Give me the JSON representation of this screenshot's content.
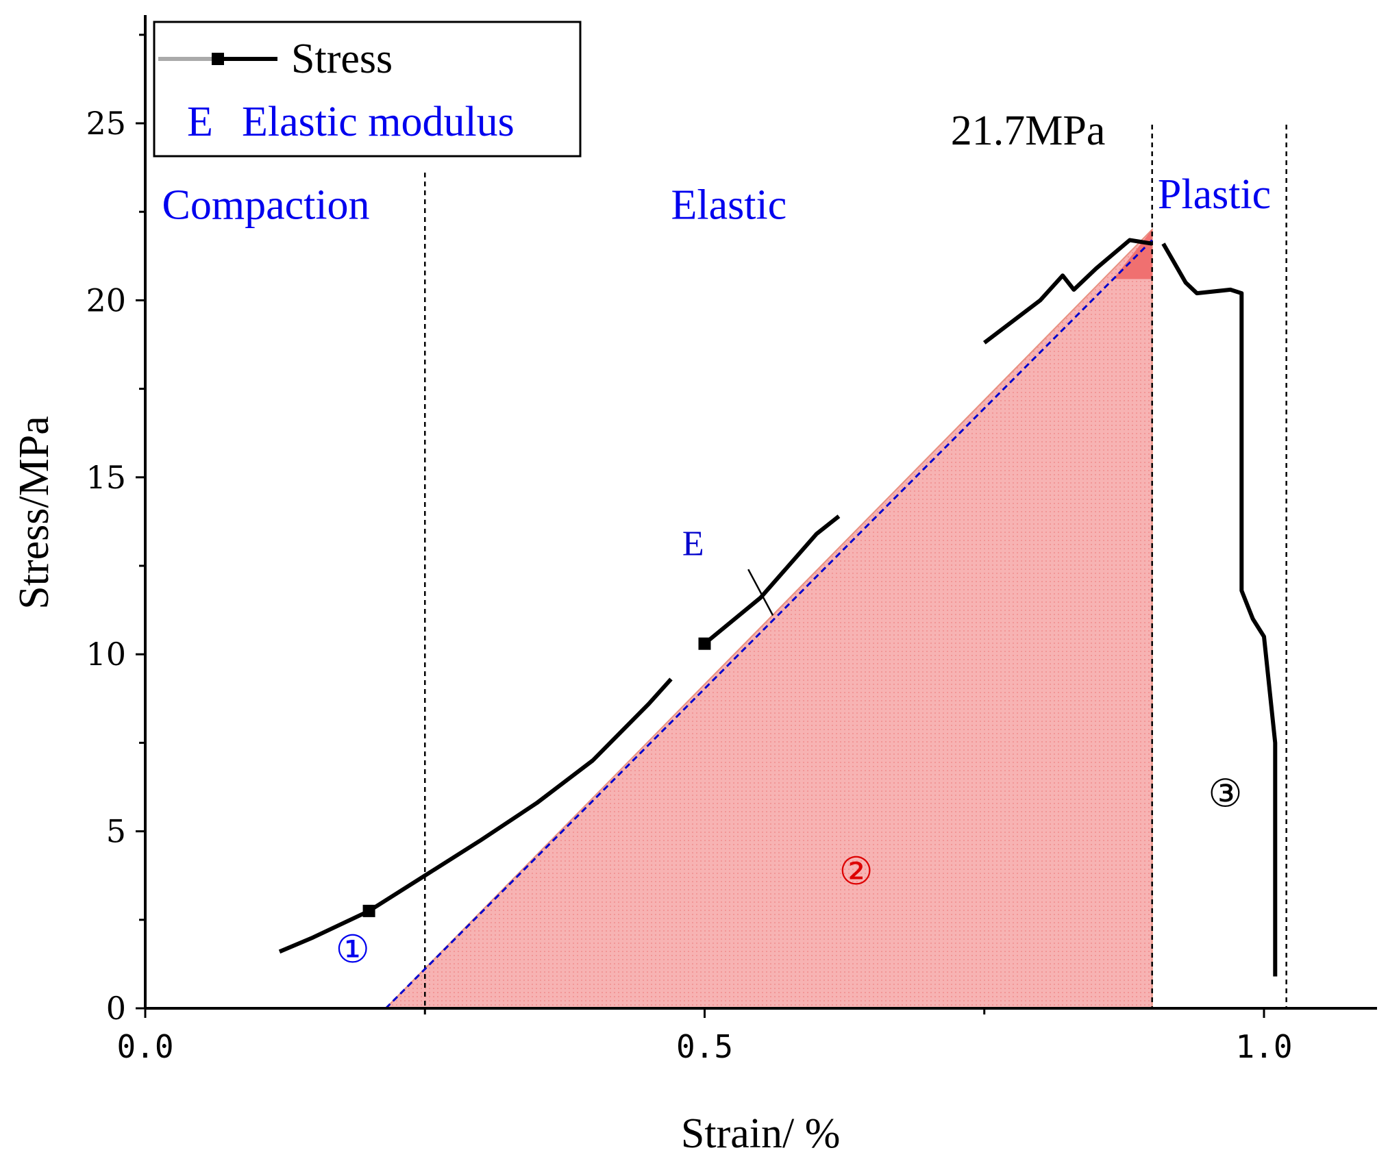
{
  "chart_data": {
    "type": "line",
    "xlabel": "Strain/ %",
    "ylabel": "Stress/MPa",
    "xlim": [
      0.0,
      1.1
    ],
    "ylim": [
      0,
      28
    ],
    "xticks": [
      {
        "value": 0.0,
        "label": "0.0"
      },
      {
        "value": 0.5,
        "label": "0.5"
      },
      {
        "value": 1.0,
        "label": "1.0"
      }
    ],
    "yticks": [
      {
        "value": 0,
        "label": "0"
      },
      {
        "value": 5,
        "label": "5"
      },
      {
        "value": 10,
        "label": "10"
      },
      {
        "value": 15,
        "label": "15"
      },
      {
        "value": 20,
        "label": "20"
      },
      {
        "value": 25,
        "label": "25"
      }
    ],
    "x_minor_ticks": [
      0.25,
      0.75
    ],
    "y_minor_ticks": [
      2.5,
      7.5,
      12.5,
      17.5,
      22.5,
      27.5
    ],
    "legend": [
      {
        "marker": "line-square",
        "label": "Stress"
      },
      {
        "marker": "text",
        "symbol": "E",
        "label": "Elastic modulus"
      }
    ],
    "series": [
      {
        "name": "Stress",
        "color": "#000000",
        "points": [
          [
            0.0,
            0.0
          ],
          [
            0.21,
            0.0
          ],
          [
            0.12,
            1.6
          ],
          [
            0.15,
            2.0
          ],
          [
            0.2,
            2.75
          ],
          [
            0.25,
            3.75
          ],
          [
            0.3,
            4.75
          ],
          [
            0.35,
            5.8
          ],
          [
            0.4,
            7.0
          ],
          [
            0.45,
            8.6
          ],
          [
            0.47,
            9.3
          ],
          [
            0.5,
            10.3
          ],
          [
            0.55,
            11.6
          ],
          [
            0.6,
            13.4
          ],
          [
            0.62,
            13.9
          ],
          [
            0.75,
            18.8
          ],
          [
            0.8,
            20.0
          ],
          [
            0.82,
            20.7
          ],
          [
            0.83,
            20.3
          ],
          [
            0.85,
            20.9
          ],
          [
            0.88,
            21.7
          ],
          [
            0.9,
            21.6
          ],
          [
            0.91,
            21.6
          ],
          [
            0.93,
            20.5
          ],
          [
            0.94,
            20.2
          ],
          [
            0.97,
            20.3
          ],
          [
            0.98,
            20.2
          ],
          [
            0.98,
            11.8
          ],
          [
            0.99,
            11.0
          ],
          [
            1.0,
            10.5
          ],
          [
            1.01,
            7.5
          ],
          [
            1.01,
            0.9
          ]
        ]
      }
    ],
    "elastic_modulus_line": {
      "from": [
        0.215,
        0.0
      ],
      "to": [
        0.9,
        21.7
      ],
      "color": "#0000cc",
      "style": "dashed"
    },
    "shaded_region": {
      "from_x": 0.215,
      "to_x": 0.9,
      "top_y": 21.7,
      "color": "#f4a0a0"
    },
    "peak_region": {
      "from_y": 20.6,
      "to_y": 22.0,
      "color": "#f06464"
    },
    "regions": [
      {
        "label": "Compaction",
        "boundary_x": 0.25,
        "color": "#0000ee"
      },
      {
        "label": "Elastic",
        "boundary_x": 0.9,
        "color": "#0000ee"
      },
      {
        "label": "Plastic",
        "boundary_x": 1.02,
        "color": "#0000ee"
      }
    ],
    "annotations": [
      {
        "text": "21.7MPa",
        "x": 0.72,
        "y": 24.4,
        "color": "#000000"
      },
      {
        "text": "E",
        "x": 0.48,
        "y": 12.8,
        "color": "#0000cc"
      },
      {
        "text": "①",
        "x": 0.17,
        "y": 1.3,
        "color": "#0000ee"
      },
      {
        "text": "②",
        "x": 0.62,
        "y": 3.5,
        "color": "#dd0000"
      },
      {
        "text": "③",
        "x": 0.95,
        "y": 5.7,
        "color": "#000000"
      }
    ]
  }
}
